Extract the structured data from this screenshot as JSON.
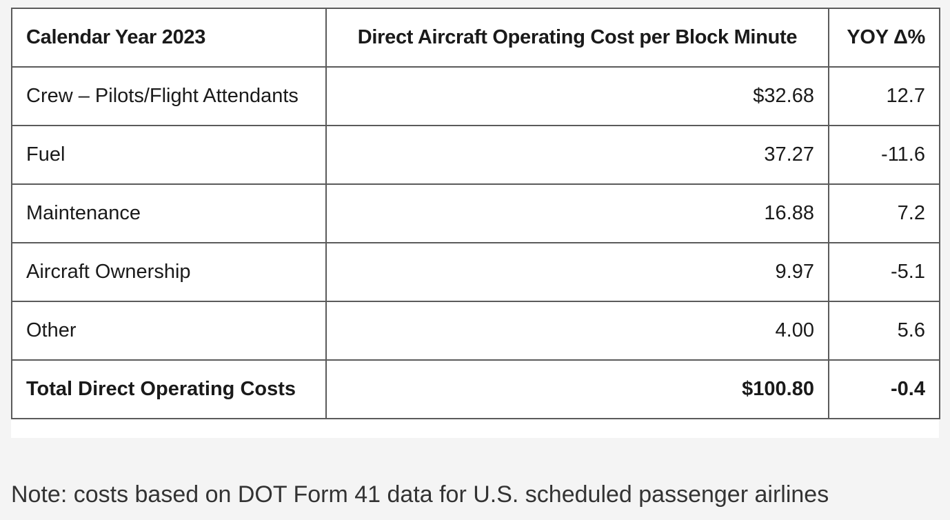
{
  "table": {
    "headers": [
      "Calendar Year 2023",
      "Direct Aircraft Operating Cost per Block Minute",
      "YOY Δ%"
    ],
    "rows": [
      {
        "category": "Crew – Pilots/Flight Attendants",
        "cost": "$32.68",
        "yoy": "12.7"
      },
      {
        "category": "Fuel",
        "cost": "37.27",
        "yoy": "-11.6"
      },
      {
        "category": "Maintenance",
        "cost": "16.88",
        "yoy": "7.2"
      },
      {
        "category": "Aircraft Ownership",
        "cost": "9.97",
        "yoy": "-5.1"
      },
      {
        "category": "Other",
        "cost": "4.00",
        "yoy": "5.6"
      }
    ],
    "total": {
      "category": "Total Direct Operating Costs",
      "cost": "$100.80",
      "yoy": "-0.4"
    }
  },
  "note": "Note: costs based on DOT Form 41 data for U.S. scheduled passenger airlines"
}
